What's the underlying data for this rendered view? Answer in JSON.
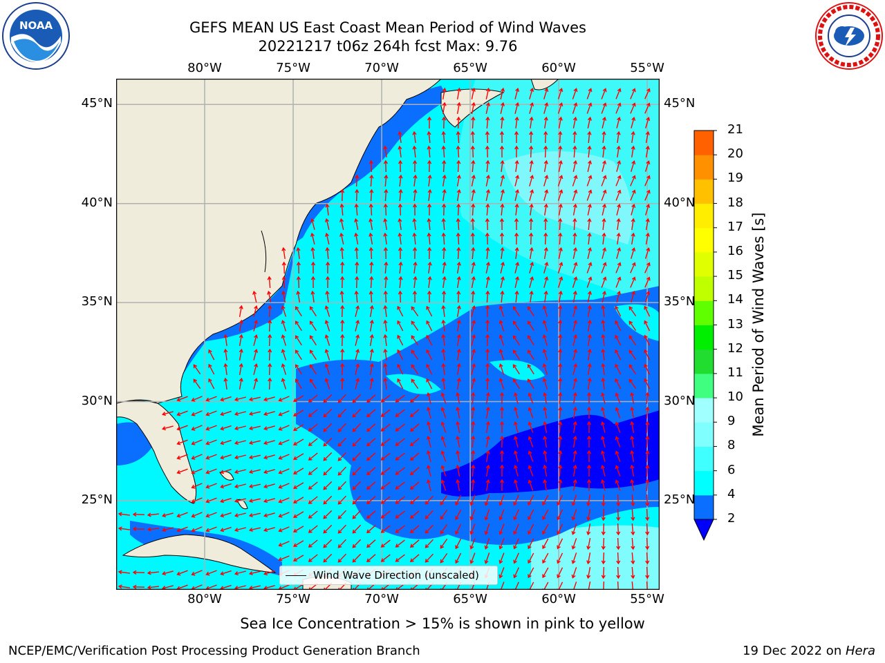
{
  "title": {
    "line1": "GEFS MEAN US East Coast Mean Period of Wind Waves",
    "line2": "20221217 t06z 264h fcst   Max: 9.76"
  },
  "logos": {
    "left": {
      "icon": "noaa-logo",
      "text": "NOAA",
      "ring_text": "NATIONAL OCEANIC AND ATMOSPHERIC ADMINISTRATION · U.S. DEPARTMENT OF COMMERCE"
    },
    "right": {
      "icon": "nws-logo",
      "ring_text": "NATIONAL WEATHER SERVICE"
    }
  },
  "map": {
    "lon_labels": [
      "80°W",
      "75°W",
      "70°W",
      "65°W",
      "60°W",
      "55°W"
    ],
    "lat_labels": [
      "45°N",
      "40°N",
      "35°N",
      "30°N",
      "25°N"
    ],
    "extent": {
      "lon": [
        -85,
        -54.3
      ],
      "lat": [
        20.5,
        46.3
      ]
    },
    "gridlines": true,
    "colors": {
      "land": "#efecdc",
      "coast": "#000000",
      "grid": "#b0b0b0",
      "arrow": "#ff0000"
    }
  },
  "legend": {
    "label": "Wind Wave Direction (unscaled)"
  },
  "colorbar": {
    "title": "Mean Period of Wind Waves [s]",
    "ticks": [
      "2",
      "4",
      "6",
      "8",
      "9",
      "10",
      "11",
      "12",
      "13",
      "14",
      "15",
      "16",
      "17",
      "18",
      "19",
      "20",
      "21"
    ],
    "colors": [
      "#0a6fff",
      "#00ffff",
      "#40ffff",
      "#80ffff",
      "#a0ffff",
      "#40ff80",
      "#20dd30",
      "#00ee00",
      "#60ff00",
      "#c0ff00",
      "#e0ff00",
      "#ffff00",
      "#ffee00",
      "#ffc000",
      "#ff9000",
      "#ff6000",
      "#ff2000",
      "#ff0000"
    ],
    "under_color": "#0000ff",
    "extend": "min"
  },
  "subtitle": "Sea Ice Concentration > 15% is shown in pink to yellow",
  "footer": {
    "left": "NCEP/EMC/Verification Post Processing Product Generation Branch",
    "right_prefix": "19 Dec 2022 on ",
    "right_host": "Hera"
  }
}
